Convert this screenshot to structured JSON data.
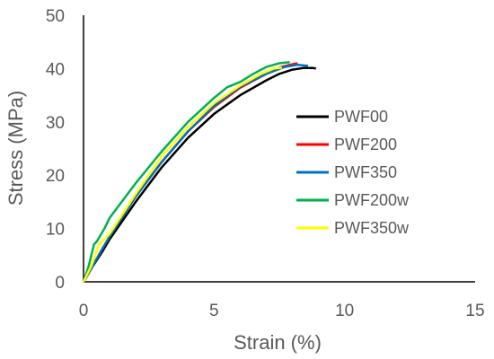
{
  "chart_data": {
    "type": "line",
    "title": "",
    "xlabel": "Strain (%)",
    "ylabel": "Stress (MPa)",
    "xlim": [
      0,
      15
    ],
    "ylim": [
      0,
      50
    ],
    "xticks": [
      0,
      5,
      10,
      15
    ],
    "yticks": [
      0,
      10,
      20,
      30,
      40,
      50
    ],
    "grid": false,
    "legend": "right-middle",
    "series": [
      {
        "name": "PWF00",
        "color": "#000000",
        "points": [
          [
            0,
            0
          ],
          [
            0.3,
            2.5
          ],
          [
            0.7,
            5.5
          ],
          [
            1,
            8
          ],
          [
            2,
            15
          ],
          [
            3,
            21.5
          ],
          [
            4,
            27
          ],
          [
            5,
            31.5
          ],
          [
            6,
            35
          ],
          [
            7,
            37.8
          ],
          [
            7.5,
            39
          ],
          [
            8,
            39.8
          ],
          [
            8.4,
            40.1
          ],
          [
            8.8,
            40.1
          ],
          [
            8.9,
            40
          ]
        ]
      },
      {
        "name": "PWF200",
        "color": "#ff0000",
        "points": [
          [
            0,
            0
          ],
          [
            0.3,
            2.5
          ],
          [
            0.7,
            6
          ],
          [
            1,
            8.5
          ],
          [
            2,
            16
          ],
          [
            3,
            22.5
          ],
          [
            4,
            28.2
          ],
          [
            5,
            32.8
          ],
          [
            6,
            36.4
          ],
          [
            7,
            39
          ],
          [
            7.5,
            40.2
          ],
          [
            8,
            40.8
          ],
          [
            8.2,
            41
          ]
        ]
      },
      {
        "name": "PWF350",
        "color": "#0070c0",
        "points": [
          [
            0,
            0
          ],
          [
            0.3,
            2.5
          ],
          [
            0.7,
            6
          ],
          [
            1,
            8.5
          ],
          [
            2,
            16
          ],
          [
            3,
            22.5
          ],
          [
            4,
            28.2
          ],
          [
            5,
            33
          ],
          [
            6,
            36.6
          ],
          [
            7,
            39
          ],
          [
            7.7,
            40.3
          ],
          [
            8.2,
            40.7
          ],
          [
            8.6,
            40.5
          ]
        ]
      },
      {
        "name": "PWF200w",
        "color": "#00b050",
        "points": [
          [
            0,
            0
          ],
          [
            0.2,
            3
          ],
          [
            0.4,
            7
          ],
          [
            0.5,
            7.5
          ],
          [
            0.8,
            10
          ],
          [
            1,
            12
          ],
          [
            2,
            18.5
          ],
          [
            3,
            24.5
          ],
          [
            4,
            30
          ],
          [
            5,
            34.5
          ],
          [
            5.5,
            36.5
          ],
          [
            6,
            37.5
          ],
          [
            6.5,
            39
          ],
          [
            7,
            40.3
          ],
          [
            7.5,
            41
          ],
          [
            7.9,
            41.2
          ]
        ]
      },
      {
        "name": "PWF350w",
        "color": "#ffff00",
        "points": [
          [
            0,
            0
          ],
          [
            0.3,
            3
          ],
          [
            0.6,
            7
          ],
          [
            1,
            9
          ],
          [
            2,
            16.5
          ],
          [
            3,
            23.5
          ],
          [
            4,
            29
          ],
          [
            5,
            33.5
          ],
          [
            6,
            36.8
          ],
          [
            6.8,
            39
          ],
          [
            7.3,
            40
          ],
          [
            7.6,
            40.2
          ]
        ]
      }
    ]
  }
}
